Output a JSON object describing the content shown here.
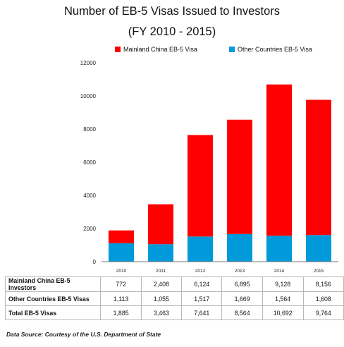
{
  "title_line1": "Number of EB-5 Visas Issued to Investors",
  "title_line2": "(FY 2010 - 2015)",
  "source": "Data Source: Courtesy of the U.S. Department of State",
  "colors": {
    "china": "#ff0000",
    "other": "#0099d9"
  },
  "chart_data": {
    "type": "bar",
    "stacked": true,
    "categories": [
      "2010",
      "2011",
      "2012",
      "2013",
      "2014",
      "2015"
    ],
    "series": [
      {
        "name": "Other Countries EB-5 Visa",
        "values": [
          1113,
          1055,
          1517,
          1669,
          1564,
          1608
        ],
        "color": "#0099d9"
      },
      {
        "name": "Mainland China EB-5 Visa",
        "values": [
          772,
          2408,
          6124,
          6895,
          9128,
          8156
        ],
        "color": "#ff0000"
      }
    ],
    "yticks": [
      "0",
      "2000",
      "4000",
      "6000",
      "8000",
      "10000",
      "12000"
    ],
    "ylim": [
      0,
      12000
    ],
    "grid": false,
    "legend": "top"
  },
  "table": {
    "rows": [
      {
        "label": "Mainland China EB-5 Investors",
        "values": [
          "772",
          "2,408",
          "6,124",
          "6,895",
          "9,128",
          "8,156"
        ]
      },
      {
        "label": "Other Countries  EB-5 Visas",
        "values": [
          "1,113",
          "1,055",
          "1,517",
          "1,669",
          "1,564",
          "1,608"
        ]
      },
      {
        "label": "Total EB-5 Visas",
        "values": [
          "1,885",
          "3,463",
          "7,641",
          "8,564",
          "10,692",
          "9,764"
        ]
      }
    ]
  }
}
